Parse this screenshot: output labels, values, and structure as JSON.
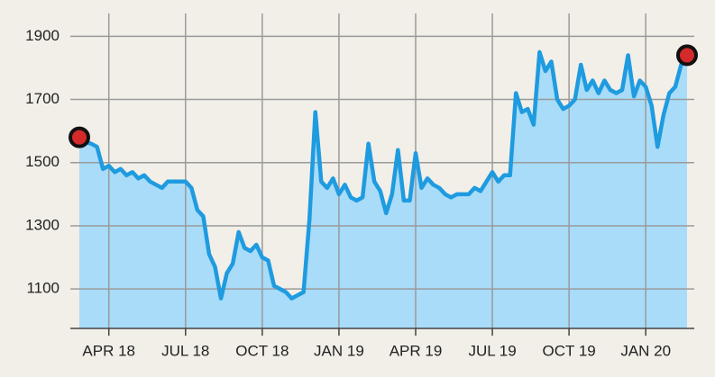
{
  "chart_data": {
    "type": "area",
    "categories": [
      null,
      null,
      null,
      null,
      null,
      "APR 18",
      null,
      null,
      null,
      null,
      null,
      null,
      null,
      null,
      null,
      null,
      null,
      null,
      "JUL 18",
      null,
      null,
      null,
      null,
      null,
      null,
      null,
      null,
      null,
      null,
      null,
      null,
      "OCT 18",
      null,
      null,
      null,
      null,
      null,
      null,
      null,
      null,
      null,
      null,
      null,
      null,
      "JAN 19",
      null,
      null,
      null,
      null,
      null,
      null,
      null,
      null,
      null,
      null,
      null,
      null,
      "APR 19",
      null,
      null,
      null,
      null,
      null,
      null,
      null,
      null,
      null,
      null,
      null,
      null,
      "JUL 19",
      null,
      null,
      null,
      null,
      null,
      null,
      null,
      null,
      null,
      null,
      null,
      null,
      "OCT 19",
      null,
      null,
      null,
      null,
      null,
      null,
      null,
      null,
      null,
      null,
      null,
      null,
      "JAN 20",
      null,
      null,
      null,
      null,
      null,
      null,
      null
    ],
    "series": [
      {
        "color": "#1f9be0",
        "fill": "#a8dcf8",
        "marker_color": "#d42a2a",
        "values": [
          1580,
          1565,
          1560,
          1550,
          1480,
          1490,
          1470,
          1480,
          1460,
          1470,
          1450,
          1460,
          1440,
          1430,
          1420,
          1440,
          1440,
          1440,
          1440,
          1420,
          1350,
          1330,
          1210,
          1170,
          1070,
          1150,
          1180,
          1280,
          1230,
          1220,
          1240,
          1200,
          1190,
          1110,
          1100,
          1090,
          1070,
          1080,
          1090,
          1320,
          1660,
          1440,
          1420,
          1450,
          1400,
          1430,
          1390,
          1380,
          1390,
          1560,
          1440,
          1410,
          1340,
          1400,
          1540,
          1380,
          1380,
          1530,
          1420,
          1450,
          1430,
          1420,
          1400,
          1390,
          1400,
          1400,
          1400,
          1420,
          1410,
          1440,
          1470,
          1440,
          1460,
          1460,
          1720,
          1660,
          1670,
          1620,
          1850,
          1790,
          1820,
          1700,
          1670,
          1680,
          1700,
          1810,
          1730,
          1760,
          1720,
          1760,
          1730,
          1720,
          1730,
          1840,
          1710,
          1760,
          1740,
          1680,
          1550,
          1650,
          1720,
          1740,
          1810,
          1840
        ]
      }
    ],
    "ylim": [
      975,
      2015
    ],
    "yticks": [
      1100,
      1300,
      1500,
      1700,
      1900
    ],
    "grid": true
  }
}
